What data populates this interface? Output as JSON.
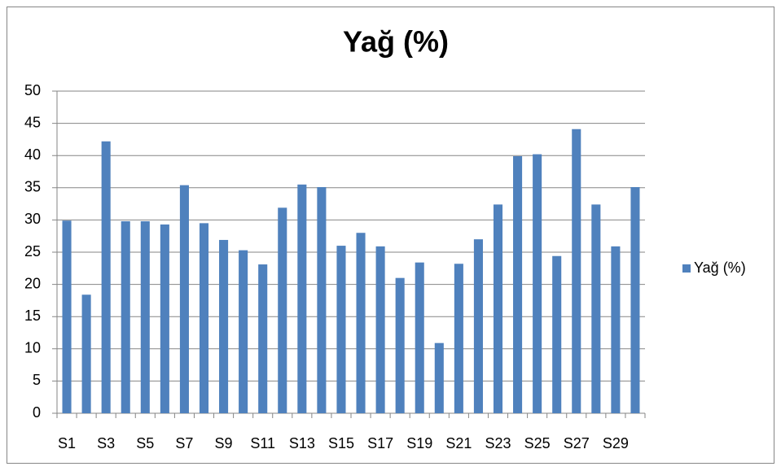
{
  "chart_data": {
    "type": "bar",
    "title": "Yağ (%)",
    "categories": [
      "S1",
      null,
      "S3",
      null,
      "S5",
      null,
      "S7",
      null,
      "S9",
      null,
      "S11",
      null,
      "S13",
      null,
      "S15",
      null,
      "S17",
      null,
      "S19",
      null,
      "S21",
      null,
      "S23",
      null,
      "S25",
      null,
      "S27",
      null,
      "S29",
      null
    ],
    "series": [
      {
        "name": "Yağ (%)",
        "color": "#4f81bd",
        "values": [
          29.9,
          18.4,
          42.2,
          29.8,
          29.8,
          29.3,
          35.4,
          29.5,
          26.9,
          25.3,
          23.1,
          31.9,
          35.5,
          35.1,
          26.0,
          28.0,
          25.9,
          21.0,
          23.4,
          10.9,
          23.2,
          27.0,
          32.4,
          39.9,
          40.2,
          24.4,
          44.1,
          32.4,
          25.9,
          35.1
        ]
      }
    ],
    "ylim": [
      0,
      50
    ],
    "yticks": [
      0,
      5,
      10,
      15,
      20,
      25,
      30,
      35,
      40,
      45,
      50
    ],
    "grid": true,
    "legend": "right"
  }
}
